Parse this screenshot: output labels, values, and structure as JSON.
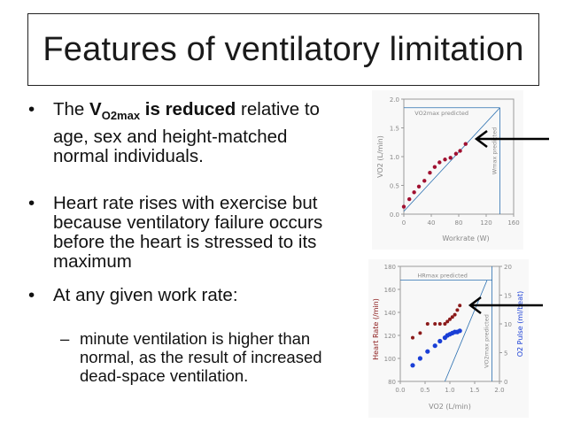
{
  "slide": {
    "title": "Features of ventilatory limitation",
    "bullet1": {
      "prefix": "The ",
      "bold_main": "V",
      "bold_sub": "O2max",
      "bold_suffix": " is reduced",
      "rest_line1": " relative to",
      "line2": "age, sex and height-matched",
      "line3": "normal individuals."
    },
    "bullet2": {
      "line1": "Heart rate rises with exercise but",
      "line2": "because ventilatory failure occurs",
      "line3": "before the heart is stressed to its",
      "line4": "maximum"
    },
    "bullet3": {
      "line1": "At any given work rate:"
    },
    "sub_bullet": {
      "line1": "minute ventilation is higher than",
      "line2": "normal, as the result of increased",
      "line3": "dead-space ventilation."
    },
    "bullet_symbol": "•",
    "dash_symbol": "–"
  },
  "chart_data": [
    {
      "type": "scatter",
      "title": "",
      "xlabel": "Workrate (W)",
      "ylabel": "VO2 (L/min)",
      "x_ticks": [
        "0",
        "40",
        "80",
        "120",
        "160"
      ],
      "y_ticks": [
        "0.0",
        "0.5",
        "1.0",
        "1.5",
        "2.0"
      ],
      "xlim": [
        0,
        160
      ],
      "ylim": [
        0,
        2.0
      ],
      "annotations": [
        "VO2max predicted",
        "Wmax predicted"
      ],
      "series": [
        {
          "color": "#a01030",
          "x": [
            0,
            8,
            15,
            22,
            30,
            38,
            45,
            52,
            60,
            68,
            76,
            82,
            90
          ],
          "y": [
            0.13,
            0.26,
            0.38,
            0.48,
            0.58,
            0.72,
            0.82,
            0.9,
            0.95,
            0.98,
            1.05,
            1.1,
            1.22
          ]
        }
      ],
      "reference_lines": {
        "vo2max_predicted": 1.85,
        "wmax_predicted": 140
      },
      "color_accent": "#2a6fb0"
    },
    {
      "type": "scatter",
      "title": "",
      "xlabel": "VO2 (L/min)",
      "ylabel": "Heart Rate (/min)",
      "y2label": "O2 Pulse (ml/beat)",
      "x_ticks": [
        "0.0",
        "0.5",
        "1.0",
        "1.5",
        "2.0"
      ],
      "y_ticks": [
        "80",
        "100",
        "120",
        "140",
        "160",
        "180"
      ],
      "y2_ticks": [
        "0",
        "5",
        "10",
        "15",
        "20"
      ],
      "xlim": [
        0,
        2.0
      ],
      "ylim": [
        80,
        180
      ],
      "annotations": [
        "HRmax predicted",
        "VO2max predicted"
      ],
      "series": [
        {
          "color": "#8b1a1a",
          "x": [
            0.25,
            0.4,
            0.55,
            0.7,
            0.8,
            0.9,
            0.95,
            1.0,
            1.05,
            1.1,
            1.15,
            1.2
          ],
          "y": [
            118,
            122,
            130,
            130,
            130,
            130,
            132,
            134,
            136,
            138,
            142,
            146
          ]
        },
        {
          "color": "#1a3fd6",
          "x": [
            0.25,
            0.4,
            0.55,
            0.7,
            0.8,
            0.9,
            0.95,
            1.0,
            1.05,
            1.1,
            1.15,
            1.2
          ],
          "y": [
            94,
            100,
            106,
            111,
            115,
            118,
            120,
            121,
            122,
            123,
            123,
            124
          ]
        }
      ],
      "reference_lines": {
        "hrmax_predicted": 168,
        "vo2max_predicted": 1.85
      },
      "color_accent": "#2a6fb0"
    }
  ]
}
